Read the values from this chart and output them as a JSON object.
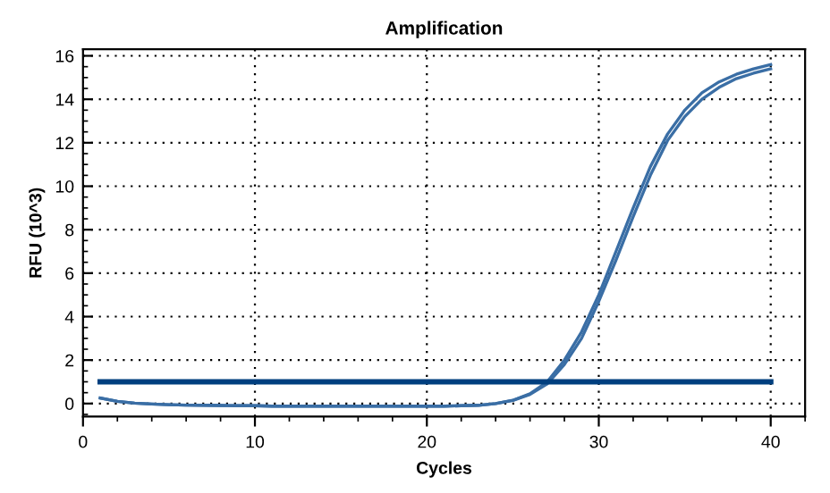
{
  "chart_data": {
    "type": "line",
    "title": "Amplification",
    "xlabel": "Cycles",
    "ylabel": "RFU (10^3)",
    "xlim": [
      0,
      42
    ],
    "ylim": [
      -0.6,
      16.3
    ],
    "xticks": [
      0,
      10,
      20,
      30,
      40
    ],
    "yticks": [
      0,
      2,
      4,
      6,
      8,
      10,
      12,
      14,
      16
    ],
    "grid": true,
    "line_style": "solid",
    "marker": "none",
    "legend": false,
    "series": [
      {
        "color": "#3a6ea5",
        "x": [
          1,
          2,
          3,
          4,
          5,
          6,
          7,
          8,
          9,
          10,
          11,
          12,
          13,
          14,
          15,
          16,
          17,
          18,
          19,
          20,
          21,
          22,
          23,
          24,
          25,
          26,
          27,
          28,
          29,
          30,
          31,
          32,
          33,
          34,
          35,
          36,
          37,
          38,
          39,
          40
        ],
        "values": [
          0.25,
          0.1,
          0.02,
          -0.02,
          -0.05,
          -0.07,
          -0.08,
          -0.09,
          -0.1,
          -0.1,
          -0.12,
          -0.12,
          -0.12,
          -0.12,
          -0.12,
          -0.12,
          -0.12,
          -0.12,
          -0.12,
          -0.12,
          -0.12,
          -0.1,
          -0.08,
          0.0,
          0.15,
          0.45,
          1.0,
          2.0,
          3.3,
          5.0,
          7.0,
          9.0,
          10.9,
          12.4,
          13.5,
          14.3,
          14.8,
          15.15,
          15.4,
          15.6
        ]
      },
      {
        "color": "#3a6ea5",
        "x": [
          1,
          2,
          3,
          4,
          5,
          6,
          7,
          8,
          9,
          10,
          11,
          12,
          13,
          14,
          15,
          16,
          17,
          18,
          19,
          20,
          21,
          22,
          23,
          24,
          25,
          26,
          27,
          28,
          29,
          30,
          31,
          32,
          33,
          34,
          35,
          36,
          37,
          38,
          39,
          40
        ],
        "values": [
          0.25,
          0.1,
          0.02,
          -0.02,
          -0.05,
          -0.07,
          -0.08,
          -0.09,
          -0.1,
          -0.1,
          -0.12,
          -0.12,
          -0.12,
          -0.12,
          -0.12,
          -0.12,
          -0.12,
          -0.12,
          -0.12,
          -0.12,
          -0.12,
          -0.1,
          -0.08,
          0.0,
          0.14,
          0.42,
          0.9,
          1.8,
          3.0,
          4.7,
          6.6,
          8.6,
          10.5,
          12.1,
          13.2,
          14.0,
          14.55,
          14.95,
          15.2,
          15.4
        ]
      },
      {
        "color": "#003f7f",
        "x": [
          1,
          40
        ],
        "values": [
          1.0,
          1.0
        ]
      }
    ]
  }
}
